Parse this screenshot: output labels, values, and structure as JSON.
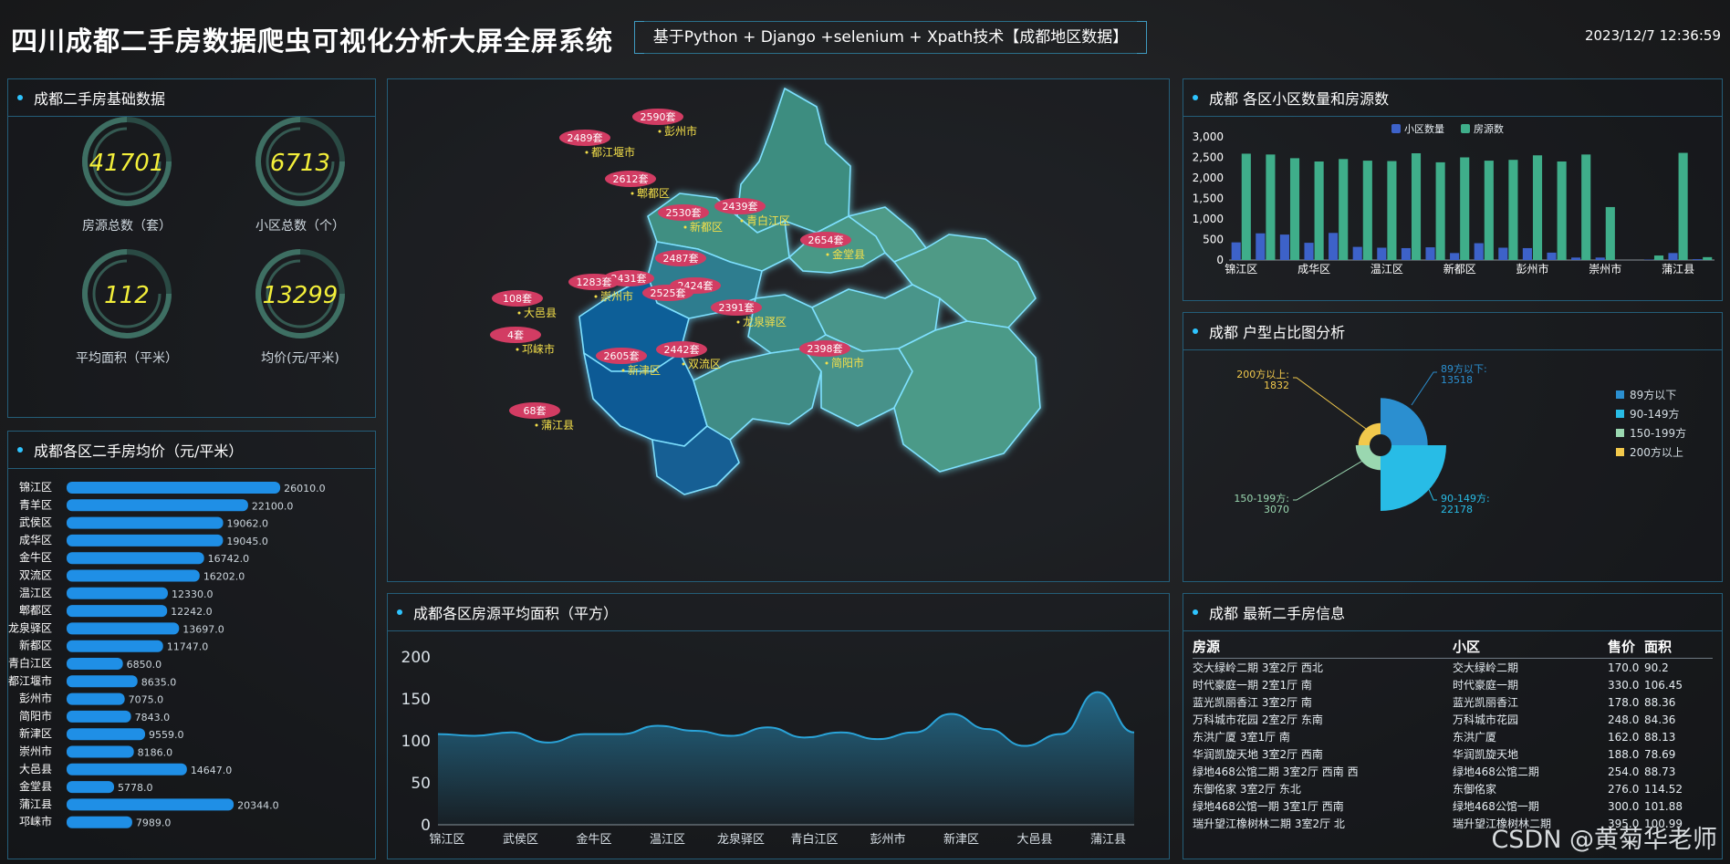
{
  "header": {
    "title": "四川成都二手房数据爬虫可视化分析大屏全屏系统",
    "subtitle": "基于Python + Django +selenium + Xpath技术【成都地区数据】",
    "datetime": "2023/12/7 12:36:59"
  },
  "basic": {
    "title": "成都二手房基础数据",
    "stats": [
      {
        "value": "41701",
        "label": "房源总数（套）"
      },
      {
        "value": "6713",
        "label": "小区总数（个）"
      },
      {
        "value": "112",
        "label": "平均面积（平米）"
      },
      {
        "value": "13299",
        "label": "均价(元/平米)"
      }
    ]
  },
  "price_panel": {
    "title": "成都各区二手房均价（元/平米）"
  },
  "map_panel": {
    "markers": [
      {
        "label": "2590套",
        "name": "彭州市"
      },
      {
        "label": "2489套",
        "name": "都江堰市"
      },
      {
        "label": "2612套",
        "name": "郫都区"
      },
      {
        "label": "2530套",
        "name": "新都区"
      },
      {
        "label": "2439套",
        "name": "青白江区"
      },
      {
        "label": "2654套",
        "name": "金堂县"
      },
      {
        "label": "2487套",
        "name": ""
      },
      {
        "label": "2431套",
        "name": ""
      },
      {
        "label": "2424套",
        "name": ""
      },
      {
        "label": "1283套",
        "name": "崇州市"
      },
      {
        "label": "2525套",
        "name": ""
      },
      {
        "label": "108套",
        "name": "大邑县"
      },
      {
        "label": "2391套",
        "name": "龙泉驿区"
      },
      {
        "label": "4套",
        "name": "邛崃市"
      },
      {
        "label": "2605套",
        "name": "新津区"
      },
      {
        "label": "2442套",
        "name": "双流区"
      },
      {
        "label": "2398套",
        "name": "简阳市"
      },
      {
        "label": "68套",
        "name": "蒲江县"
      }
    ]
  },
  "area_panel": {
    "title": "成都各区房源平均面积（平方）"
  },
  "count_panel": {
    "title": "成都 各区小区数量和房源数"
  },
  "pie_panel": {
    "title": "成都 户型占比图分析"
  },
  "list_panel": {
    "title": "成都 最新二手房信息",
    "headers": [
      "房源",
      "小区",
      "售价",
      "面积"
    ],
    "rows": [
      [
        "交大绿岭二期 3室2厅 西北",
        "交大绿岭二期",
        "170.0",
        "90.2"
      ],
      [
        "时代豪庭一期 2室1厅 南",
        "时代豪庭一期",
        "330.0",
        "106.45"
      ],
      [
        "蓝光凯丽香江 3室2厅 南",
        "蓝光凯丽香江",
        "178.0",
        "88.36"
      ],
      [
        "万科城市花园 2室2厅 东南",
        "万科城市花园",
        "248.0",
        "84.36"
      ],
      [
        "东洪广厦 3室1厅 南",
        "东洪广厦",
        "162.0",
        "88.13"
      ],
      [
        "华润凯旋天地 3室2厅 西南",
        "华润凯旋天地",
        "188.0",
        "78.69"
      ],
      [
        "绿地468公馆二期 3室2厅 西南 西",
        "绿地468公馆二期",
        "254.0",
        "88.73"
      ],
      [
        "东御佲家 3室2厅 东北",
        "东御佲家",
        "276.0",
        "114.52"
      ],
      [
        "绿地468公馆一期 3室1厅 西南",
        "绿地468公馆一期",
        "300.0",
        "101.88"
      ],
      [
        "瑞升望江橡树林二期 3室2厅 北",
        "瑞升望江橡树林二期",
        "395.0",
        "100.99"
      ]
    ]
  },
  "watermark": "CSDN @黄菊华老师",
  "colors": {
    "bar": "#1f8fe6",
    "village": "#3d62c9",
    "houses": "#3fae8a",
    "area_line": "#2aa3d8"
  },
  "chart_data": [
    {
      "type": "bar",
      "title": "成都各区二手房均价（元/平米）",
      "orientation": "horizontal",
      "categories": [
        "锦江区",
        "青羊区",
        "武侯区",
        "成华区",
        "金牛区",
        "双流区",
        "温江区",
        "郫都区",
        "龙泉驿区",
        "新都区",
        "青白江区",
        "都江堰市",
        "彭州市",
        "简阳市",
        "新津区",
        "崇州市",
        "大邑县",
        "金堂县",
        "蒲江县",
        "邛崃市"
      ],
      "values": [
        26010.0,
        22100.0,
        19062.0,
        19045.0,
        16742.0,
        16202.0,
        12330.0,
        12242.0,
        13697.0,
        11747.0,
        6850.0,
        8635.0,
        7075.0,
        7843.0,
        9559.0,
        8186.0,
        14647.0,
        5778.0,
        20344.0,
        7989.0
      ],
      "xlim": [
        0,
        30000
      ]
    },
    {
      "type": "area",
      "title": "成都各区房源平均面积（平方）",
      "categories": [
        "锦江区",
        "",
        "武侯区",
        "",
        "金牛区",
        "",
        "温江区",
        "",
        "龙泉驿区",
        "",
        "青白江区",
        "",
        "彭州市",
        "",
        "新津区",
        "",
        "大邑县",
        "",
        "蒲江县",
        ""
      ],
      "x_tick_labels": [
        "锦江区",
        "武侯区",
        "金牛区",
        "温江区",
        "龙泉驿区",
        "青白江区",
        "彭州市",
        "新津区",
        "大邑县",
        "蒲江县"
      ],
      "values": [
        108,
        106,
        110,
        98,
        108,
        108,
        118,
        112,
        106,
        116,
        104,
        110,
        102,
        110,
        132,
        114,
        94,
        108,
        158,
        110
      ],
      "ylim": [
        0,
        200
      ],
      "yticks": [
        0,
        50,
        100,
        150,
        200
      ]
    },
    {
      "type": "bar",
      "title": "成都 各区小区数量和房源数",
      "x_tick_labels": [
        "锦江区",
        "成华区",
        "温江区",
        "新都区",
        "彭州市",
        "崇州市",
        "蒲江县"
      ],
      "series": [
        {
          "name": "小区数量",
          "values": [
            430,
            650,
            620,
            420,
            660,
            320,
            300,
            290,
            310,
            170,
            410,
            300,
            290,
            180,
            60,
            60,
            0,
            10,
            170,
            20
          ]
        },
        {
          "name": "房源数",
          "values": [
            2590,
            2570,
            2480,
            2400,
            2460,
            2420,
            2410,
            2600,
            2380,
            2500,
            2420,
            2440,
            2550,
            2400,
            2570,
            1290,
            0,
            110,
            2610,
            70
          ]
        }
      ],
      "ylim": [
        0,
        3000
      ],
      "yticks": [
        "0",
        "500",
        "1,000",
        "1,500",
        "2,000",
        "2,500",
        "3,000"
      ],
      "legend": "top"
    },
    {
      "type": "pie",
      "title": "成都 户型占比图分析",
      "variant": "rose",
      "labels": [
        "89方以下",
        "90-149方",
        "150-199方",
        "200方以上"
      ],
      "values": [
        13518,
        22178,
        3070,
        1832
      ],
      "legend": "right"
    }
  ]
}
